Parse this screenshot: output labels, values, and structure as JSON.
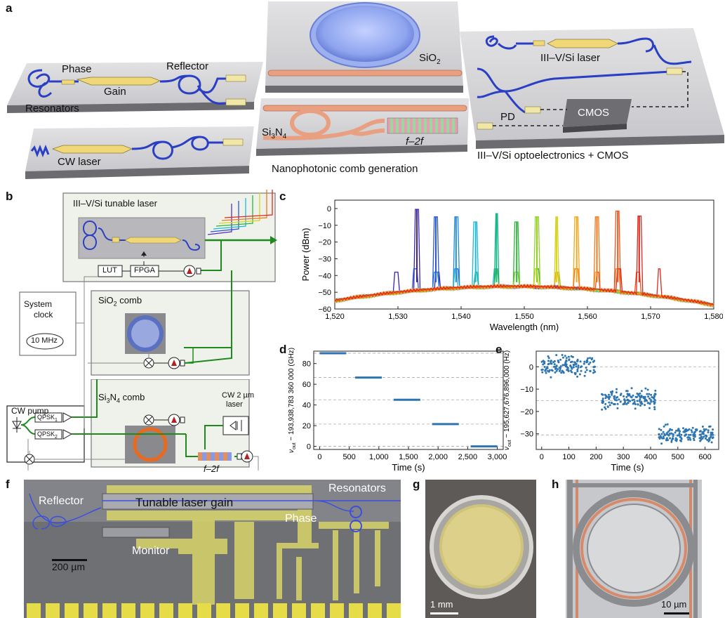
{
  "panels": {
    "a": "a",
    "b": "b",
    "c": "c",
    "d": "d",
    "e": "e",
    "f": "f",
    "g": "g",
    "h": "h"
  },
  "panel_a": {
    "phase": "Phase",
    "gain": "Gain",
    "reflector": "Reflector",
    "resonators": "Resonators",
    "cw_laser": "CW laser",
    "sio2": "SiO",
    "sio2_sub": "2",
    "si3n4_a": "Si",
    "si3n4_sub1": "3",
    "si3n4_b": "N",
    "si3n4_sub2": "4",
    "f2f": "f–2f",
    "nano": "Nanophotonic comb generation",
    "hybrid_laser": "III–V/Si laser",
    "pd": "PD",
    "cmos": "CMOS",
    "opto": "III–V/Si optoelectronics + CMOS"
  },
  "panel_b": {
    "tunable": "III–V/Si tunable laser",
    "lut": "LUT",
    "fpga": "FPGA",
    "system_clock_1": "System",
    "system_clock_2": "clock",
    "ten_mhz": "10 MHz",
    "sio2_comb": "SiO",
    "sio2_comb_sub": "2",
    "sio2_comb_tail": " comb",
    "si3n4_comb": "Si",
    "si3n4_comb_sub1": "3",
    "si3n4_comb_mid": "N",
    "si3n4_comb_sub2": "4",
    "si3n4_comb_tail": " comb",
    "cw_pump": "CW pump",
    "qpsk1": "QPSK",
    "qpsk1_sub": "1",
    "qpsk2": "QPSK",
    "qpsk2_sub": "2",
    "cw2um_1": "CW 2 µm",
    "cw2um_2": "laser",
    "f2f": "f–2f"
  },
  "colors": {
    "waveguide": "#2a3fc4",
    "sin": "#e8a080",
    "gain": "#f0d878",
    "green": "#1e8a1e",
    "diode": "#b22222",
    "chip": "#d4d4d6",
    "boxbg": "#eef2ea",
    "dot": "#2e75b0"
  },
  "chart_data": [
    {
      "panel": "c",
      "type": "line",
      "xlabel": "Wavelength (nm)",
      "ylabel": "Power (dBm)",
      "xlim": [
        1520,
        1580
      ],
      "ylim": [
        -60,
        5
      ],
      "xticks": [
        1520,
        1530,
        1540,
        1550,
        1560,
        1570,
        1580
      ],
      "xtick_labels": [
        "1,520",
        "1,530",
        "1,540",
        "1,550",
        "1,560",
        "1,570",
        "1,580"
      ],
      "yticks": [
        0,
        -10,
        -20,
        -30,
        -40,
        -50,
        -60
      ],
      "ytick_labels": [
        "0",
        "−10",
        "−20",
        "−30",
        "−40",
        "−50",
        "−60"
      ],
      "series": [
        {
          "peak_nm": 1533,
          "peak_dbm": -0.5,
          "color": "#3a1fb0"
        },
        {
          "peak_nm": 1536,
          "peak_dbm": -5,
          "color": "#2a55d8"
        },
        {
          "peak_nm": 1539.2,
          "peak_dbm": -5,
          "color": "#1e88e0"
        },
        {
          "peak_nm": 1542.3,
          "peak_dbm": -8,
          "color": "#1fb8d8"
        },
        {
          "peak_nm": 1545.6,
          "peak_dbm": -3,
          "color": "#16b58a"
        },
        {
          "peak_nm": 1548.8,
          "peak_dbm": -8,
          "color": "#2fb53a"
        },
        {
          "peak_nm": 1552,
          "peak_dbm": -5,
          "color": "#8fd21e"
        },
        {
          "peak_nm": 1555.1,
          "peak_dbm": -5,
          "color": "#d7d31e"
        },
        {
          "peak_nm": 1558.3,
          "peak_dbm": -5,
          "color": "#f0a81e"
        },
        {
          "peak_nm": 1561.5,
          "peak_dbm": -5,
          "color": "#f0781e"
        },
        {
          "peak_nm": 1564.8,
          "peak_dbm": -1.5,
          "color": "#ee5520"
        },
        {
          "peak_nm": 1568.2,
          "peak_dbm": -4.5,
          "color": "#e0281e"
        }
      ]
    },
    {
      "panel": "d",
      "type": "scatter",
      "xlabel": "Time (s)",
      "ylabel": "ν_out − 193,938,783 360 000 (GHz)",
      "ylabel_nu": "ν",
      "ylabel_sub": "out",
      "ylabel_rest": " − 193,938,783 360 000 (GHz)",
      "xlim": [
        -100,
        3100
      ],
      "ylim": [
        -3,
        92
      ],
      "xticks": [
        0,
        500,
        1000,
        1500,
        2000,
        2500,
        3000
      ],
      "xtick_labels": [
        "0",
        "500",
        "1,000",
        "1,500",
        "2,000",
        "2,500",
        "3,000"
      ],
      "yticks": [
        0,
        20,
        40,
        60,
        80
      ],
      "ytick_labels": [
        "0",
        "20",
        "40",
        "60",
        "80"
      ],
      "gridlines": [
        0,
        21.5,
        45,
        66.5,
        90
      ],
      "segments": [
        {
          "x0": 0,
          "x1": 450,
          "y": 90
        },
        {
          "x0": 600,
          "x1": 1050,
          "y": 66.5
        },
        {
          "x0": 1250,
          "x1": 1700,
          "y": 45
        },
        {
          "x0": 1900,
          "x1": 2350,
          "y": 21.5
        },
        {
          "x0": 2550,
          "x1": 3000,
          "y": 0
        }
      ]
    },
    {
      "panel": "e",
      "type": "scatter",
      "xlabel": "Time (s)",
      "ylabel": "ν_out − 195,627,676,896,000 (Hz)",
      "ylabel_nu": "ν",
      "ylabel_sub": "out",
      "ylabel_rest": " − 195,627,676,896,000 (Hz)",
      "xlim": [
        -20,
        650
      ],
      "ylim": [
        -37,
        7
      ],
      "xticks": [
        0,
        100,
        200,
        300,
        400,
        500,
        600
      ],
      "xtick_labels": [
        "0",
        "100",
        "200",
        "300",
        "400",
        "500",
        "600"
      ],
      "yticks": [
        0,
        -10,
        -20,
        -30
      ],
      "ytick_labels": [
        "0",
        "−10",
        "−20",
        "−30"
      ],
      "gridlines": [
        0,
        -15.2,
        -30.5
      ],
      "clusters": [
        {
          "x0": 0,
          "x1": 200,
          "mean": 0.8,
          "spread": 4.5
        },
        {
          "x0": 220,
          "x1": 420,
          "mean": -14.2,
          "spread": 4.5
        },
        {
          "x0": 430,
          "x1": 630,
          "mean": -30,
          "spread": 4
        }
      ]
    }
  ],
  "panel_f": {
    "reflector": "Reflector",
    "gain": "Tunable laser gain",
    "resonators": "Resonators",
    "phase": "Phase",
    "monitor": "Monitor",
    "scale": "200 µm"
  },
  "panel_g": {
    "scale": "1 mm"
  },
  "panel_h": {
    "scale": "10 µm"
  }
}
